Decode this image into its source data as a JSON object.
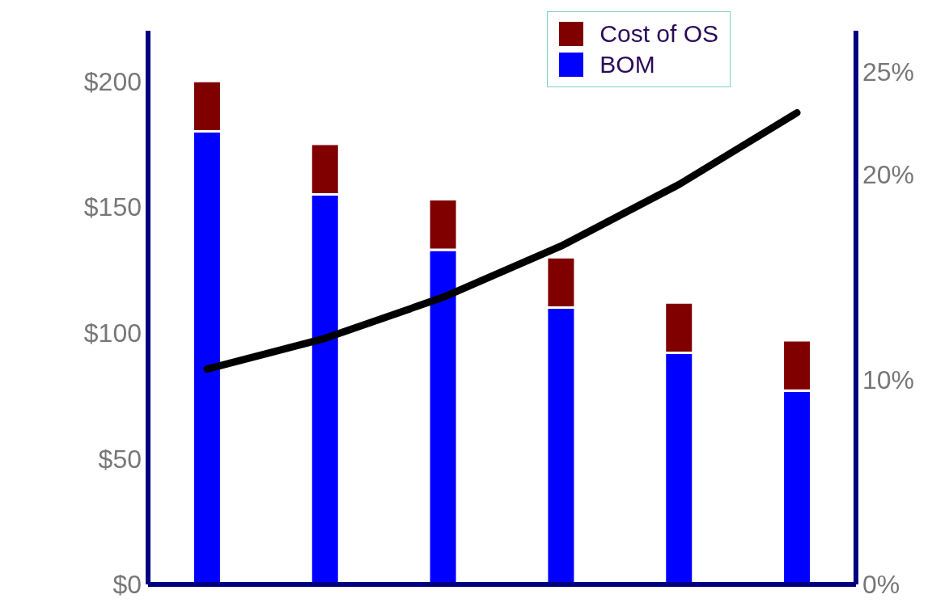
{
  "chart_data": {
    "type": "bar",
    "stacked": true,
    "categories": [
      null,
      null,
      null,
      null,
      null,
      null
    ],
    "series": [
      {
        "name": "BOM",
        "color": "#0000ff",
        "values": [
          180,
          155,
          133,
          110,
          92,
          77
        ]
      },
      {
        "name": "Cost of OS",
        "color": "#800000",
        "values": [
          20,
          20,
          20,
          20,
          20,
          20
        ]
      },
      {
        "type": "line",
        "axis": "y2",
        "color": "#000000",
        "values": [
          10.5,
          12,
          14,
          16.5,
          19.5,
          23
        ]
      }
    ],
    "ylim": [
      0,
      220
    ],
    "yticks": [
      {
        "value": 0,
        "label": "$0"
      },
      {
        "value": 50,
        "label": "$50"
      },
      {
        "value": 100,
        "label": "$100"
      },
      {
        "value": 150,
        "label": "$150"
      },
      {
        "value": 200,
        "label": "$200"
      }
    ],
    "y2lim": [
      0,
      27
    ],
    "y2ticks": [
      {
        "value": 0,
        "label": "0%"
      },
      {
        "value": 10,
        "label": "10%"
      },
      {
        "value": 20,
        "label": "20%"
      },
      {
        "value": 25,
        "label": "25%"
      }
    ],
    "grid": false,
    "legend": "top right"
  }
}
